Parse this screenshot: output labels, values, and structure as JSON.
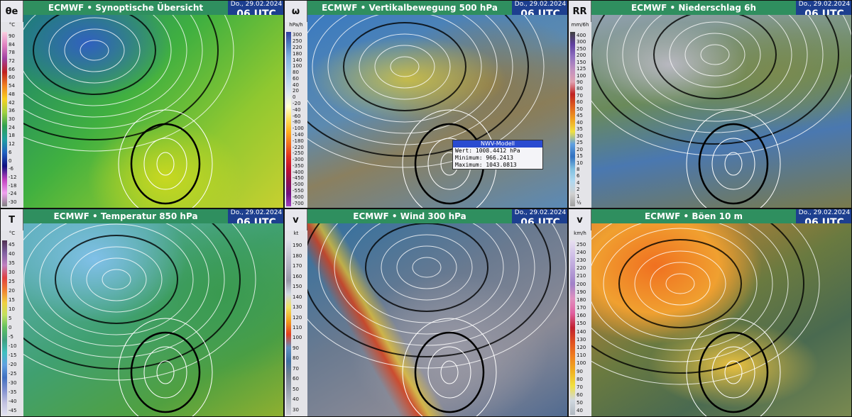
{
  "panels": [
    {
      "symbol": "θe",
      "title": "ECMWF • Synoptische Übersicht",
      "date": "Do., 29.02.2024",
      "time": "06 UTC",
      "unit": "°C",
      "scale": [
        "90",
        "84",
        "78",
        "72",
        "66",
        "60",
        "54",
        "48",
        "42",
        "36",
        "30",
        "24",
        "18",
        "12",
        "6",
        "0",
        "-6",
        "-12",
        "-18",
        "-24",
        "-30"
      ]
    },
    {
      "symbol": "ω",
      "title": "ECMWF • Vertikalbewegung 500 hPa",
      "date": "Do., 29.02.2024",
      "time": "06 UTC",
      "unit": "hPa/h",
      "scale": [
        "300",
        "250",
        "220",
        "180",
        "140",
        "100",
        "80",
        "60",
        "40",
        "20",
        "0",
        "-20",
        "-40",
        "-60",
        "-80",
        "-100",
        "-140",
        "-180",
        "-220",
        "-250",
        "-300",
        "-350",
        "-400",
        "-450",
        "-500",
        "-550",
        "-600",
        "-700"
      ]
    },
    {
      "symbol": "RR",
      "title": "ECMWF • Niederschlag 6h",
      "date": "Do., 29.02.2024",
      "time": "06 UTC",
      "unit": "mm/6h",
      "scale": [
        "400",
        "300",
        "250",
        "200",
        "150",
        "125",
        "100",
        "90",
        "80",
        "70",
        "60",
        "50",
        "45",
        "40",
        "35",
        "30",
        "25",
        "20",
        "15",
        "10",
        "8",
        "6",
        "4",
        "2",
        "1",
        "½"
      ]
    },
    {
      "symbol": "T",
      "title": "ECMWF • Temperatur 850 hPa",
      "date": "Do., 29.02.2024",
      "time": "06 UTC",
      "unit": "°C",
      "scale": [
        "45",
        "40",
        "35",
        "30",
        "25",
        "20",
        "15",
        "10",
        "5",
        "0",
        "-5",
        "-10",
        "-15",
        "-20",
        "-25",
        "-30",
        "-35",
        "-40",
        "-45"
      ]
    },
    {
      "symbol": "v",
      "title": "ECMWF • Wind 300 hPa",
      "date": "Do., 29.02.2024",
      "time": "06 UTC",
      "unit": "kt",
      "scale": [
        "190",
        "180",
        "170",
        "160",
        "150",
        "140",
        "130",
        "120",
        "110",
        "100",
        "90",
        "80",
        "70",
        "60",
        "50",
        "40",
        "30"
      ]
    },
    {
      "symbol": "v",
      "title": "ECMWF • Böen 10 m",
      "date": "Do., 29.02.2024",
      "time": "06 UTC",
      "unit": "km/h",
      "scale": [
        "250",
        "240",
        "230",
        "220",
        "210",
        "200",
        "190",
        "180",
        "170",
        "160",
        "150",
        "140",
        "130",
        "120",
        "110",
        "100",
        "90",
        "80",
        "70",
        "60",
        "50",
        "40"
      ]
    }
  ],
  "tooltip": {
    "title": "NWV-Modell",
    "lines": [
      "Wert: 1008.4412 hPa",
      "Minimum: 966.2413",
      "Maximum: 1043.0813"
    ]
  }
}
